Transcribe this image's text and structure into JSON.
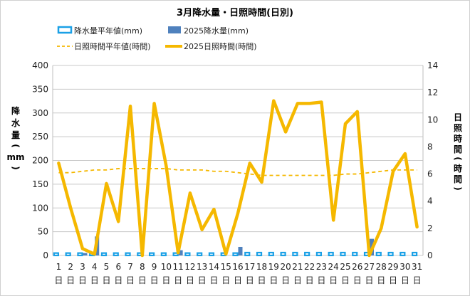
{
  "chart_data": {
    "type": "bar+line",
    "title": "3月降水量・日照時間(日別)",
    "categories": [
      "1",
      "2",
      "3",
      "4",
      "5",
      "6",
      "7",
      "8",
      "9",
      "10",
      "11",
      "12",
      "13",
      "14",
      "15",
      "16",
      "17",
      "18",
      "19",
      "20",
      "21",
      "22",
      "23",
      "24",
      "25",
      "26",
      "27",
      "28",
      "29",
      "30",
      "31"
    ],
    "day_suffix": "日",
    "left_axis": {
      "label_chars": [
        "降",
        "水",
        "量",
        "(",
        "mm",
        ")"
      ],
      "ylim": [
        0,
        400
      ],
      "ticks": [
        0,
        50,
        100,
        150,
        200,
        250,
        300,
        350,
        400
      ]
    },
    "right_axis": {
      "label_chars": [
        "日",
        "照",
        "時",
        "間",
        "(",
        "時",
        "間",
        ")"
      ],
      "ylim": [
        0,
        14
      ],
      "ticks": [
        0,
        2,
        4,
        6,
        8,
        10,
        12,
        14
      ]
    },
    "series": [
      {
        "name": "降水量平年値(mm)",
        "kind": "bar",
        "axis": "left",
        "style": "outline",
        "color": "#1aa0e6",
        "values": [
          5,
          5,
          5,
          5,
          5,
          5,
          5,
          5,
          5,
          5,
          5,
          5,
          5,
          5,
          5,
          5,
          6,
          6,
          6,
          6,
          6,
          6,
          6,
          6,
          6,
          6,
          6,
          6,
          6,
          6,
          6
        ]
      },
      {
        "name": "2025降水量(mm)",
        "kind": "bar",
        "axis": "left",
        "style": "filled",
        "color": "#4f81bd",
        "values": [
          0,
          0,
          5,
          40,
          0,
          0,
          0,
          0,
          0,
          0,
          11,
          0,
          0,
          0,
          0,
          18,
          0,
          0,
          0,
          0,
          0,
          0,
          0,
          0,
          0,
          0,
          35,
          0,
          0,
          0,
          0
        ]
      },
      {
        "name": "日照時間平年値(時間)",
        "kind": "line",
        "axis": "right",
        "style": "dashed",
        "color": "#f5b800",
        "values": [
          6.1,
          6.1,
          6.2,
          6.3,
          6.3,
          6.4,
          6.4,
          6.4,
          6.4,
          6.4,
          6.3,
          6.3,
          6.3,
          6.2,
          6.2,
          6.1,
          6.0,
          5.9,
          5.9,
          5.9,
          5.9,
          5.9,
          5.9,
          5.9,
          6.0,
          6.0,
          6.1,
          6.2,
          6.3,
          6.3,
          6.3
        ]
      },
      {
        "name": "2025日照時間(時間)",
        "kind": "line",
        "axis": "right",
        "style": "solid",
        "color": "#f5b800",
        "values": [
          6.8,
          3.5,
          0.5,
          0.1,
          5.3,
          2.5,
          11.0,
          0.0,
          11.2,
          6.6,
          0.2,
          4.6,
          1.9,
          3.4,
          0.1,
          3.1,
          6.8,
          5.4,
          11.4,
          9.1,
          11.2,
          11.2,
          11.3,
          2.6,
          9.7,
          10.6,
          0.0,
          2.0,
          6.2,
          7.5,
          2.1
        ]
      }
    ]
  }
}
